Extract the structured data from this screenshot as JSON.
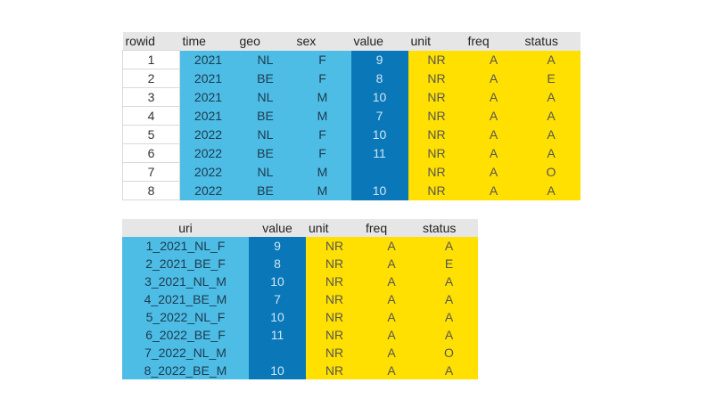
{
  "table1": {
    "headers": [
      "rowid",
      "time",
      "geo",
      "sex",
      "value",
      "unit",
      "freq",
      "status"
    ],
    "rows": [
      [
        "1",
        "2021",
        "NL",
        "F",
        "9",
        "NR",
        "A",
        "A"
      ],
      [
        "2",
        "2021",
        "BE",
        "F",
        "8",
        "NR",
        "A",
        "E"
      ],
      [
        "3",
        "2021",
        "NL",
        "M",
        "10",
        "NR",
        "A",
        "A"
      ],
      [
        "4",
        "2021",
        "BE",
        "M",
        "7",
        "NR",
        "A",
        "A"
      ],
      [
        "5",
        "2022",
        "NL",
        "F",
        "10",
        "NR",
        "A",
        "A"
      ],
      [
        "6",
        "2022",
        "BE",
        "F",
        "11",
        "NR",
        "A",
        "A"
      ],
      [
        "7",
        "2022",
        "NL",
        "M",
        "",
        "NR",
        "A",
        "O"
      ],
      [
        "8",
        "2022",
        "BE",
        "M",
        "10",
        "NR",
        "A",
        "A"
      ]
    ]
  },
  "table2": {
    "headers": [
      "uri",
      "value",
      "unit",
      "freq",
      "status"
    ],
    "rows": [
      [
        "1_2021_NL_F",
        "9",
        "NR",
        "A",
        "A"
      ],
      [
        "2_2021_BE_F",
        "8",
        "NR",
        "A",
        "E"
      ],
      [
        "3_2021_NL_M",
        "10",
        "NR",
        "A",
        "A"
      ],
      [
        "4_2021_BE_M",
        "7",
        "NR",
        "A",
        "A"
      ],
      [
        "5_2022_NL_F",
        "10",
        "NR",
        "A",
        "A"
      ],
      [
        "6_2022_BE_F",
        "11",
        "NR",
        "A",
        "A"
      ],
      [
        "7_2022_NL_M",
        "",
        "NR",
        "A",
        "O"
      ],
      [
        "8_2022_BE_M",
        "10",
        "NR",
        "A",
        "A"
      ]
    ]
  },
  "colors": {
    "header": "#e6e6e6",
    "dimension": "#4dbde6",
    "measure": "#0a77b8",
    "attribute": "#ffe000"
  }
}
